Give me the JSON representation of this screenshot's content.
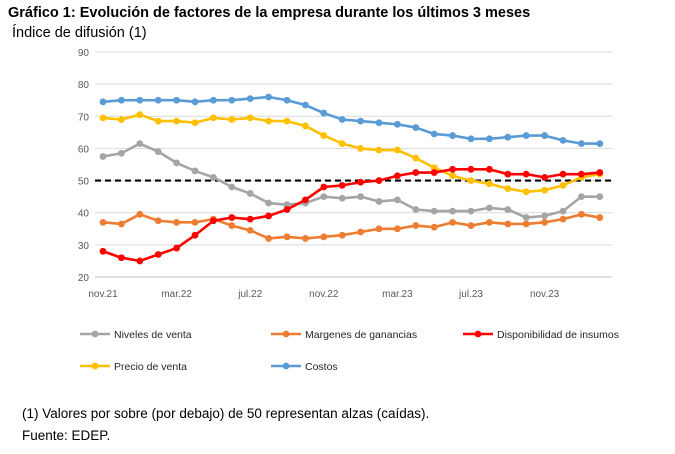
{
  "chart_data": {
    "type": "line",
    "title": "Gráfico 1: Evolución de factores de la empresa durante los últimos 3 meses",
    "subtitle": "Índice de difusión (1)",
    "ylim": [
      20,
      90
    ],
    "yticks": [
      20,
      30,
      40,
      50,
      60,
      70,
      80,
      90
    ],
    "xtick_labels": [
      "nov.21",
      "mar.22",
      "jul.22",
      "nov.22",
      "mar.23",
      "jul.23",
      "nov.23"
    ],
    "xtick_index": [
      0,
      4,
      8,
      12,
      16,
      20,
      24
    ],
    "n_points": 28,
    "reference_line": 50,
    "series": [
      {
        "name": "Niveles de venta",
        "color": "#a5a5a5",
        "values": [
          57.5,
          58.5,
          61.5,
          59,
          55.5,
          53,
          51,
          48,
          46,
          43,
          42.5,
          43,
          45,
          44.5,
          45,
          43.5,
          44,
          41,
          40.5,
          40.5,
          40.5,
          41.5,
          41,
          38.5,
          39,
          40.5,
          45,
          45
        ]
      },
      {
        "name": "Margenes de ganancias",
        "color": "#ed7d31",
        "values": [
          37,
          36.5,
          39.5,
          37.5,
          37,
          37,
          38,
          36,
          34.5,
          32,
          32.5,
          32,
          32.5,
          33,
          34,
          35,
          35,
          36,
          35.5,
          37,
          36,
          37,
          36.5,
          36.5,
          37,
          38,
          39.5,
          38.5
        ]
      },
      {
        "name": "Disponibilidad de insumos",
        "color": "#ff0000",
        "values": [
          28,
          26,
          25,
          27,
          29,
          33,
          37.5,
          38.5,
          38,
          39,
          41,
          44,
          48,
          48.5,
          49.5,
          50,
          51.5,
          52.5,
          52.5,
          53.5,
          53.5,
          53.5,
          52,
          52,
          51,
          52,
          52,
          52.5
        ]
      },
      {
        "name": "Precio de venta",
        "color": "#ffc000",
        "values": [
          69.5,
          69,
          70.5,
          68.5,
          68.5,
          68,
          69.5,
          69,
          69.5,
          68.5,
          68.5,
          67,
          64,
          61.5,
          60,
          59.5,
          59.5,
          57,
          54,
          51.5,
          50,
          49,
          47.5,
          46.5,
          47,
          48.5,
          51,
          52
        ]
      },
      {
        "name": "Costos",
        "color": "#5b9bd5",
        "values": [
          74.5,
          75,
          75,
          75,
          75,
          74.5,
          75,
          75,
          75.5,
          76,
          75,
          73.5,
          71,
          69,
          68.5,
          68,
          67.5,
          66.5,
          64.5,
          64,
          63,
          63,
          63.5,
          64,
          64,
          62.5,
          61.5,
          61.5
        ]
      }
    ]
  },
  "footnote": "(1) Valores por sobre (por debajo) de 50 representan alzas (caídas).",
  "source": "Fuente: EDEP."
}
